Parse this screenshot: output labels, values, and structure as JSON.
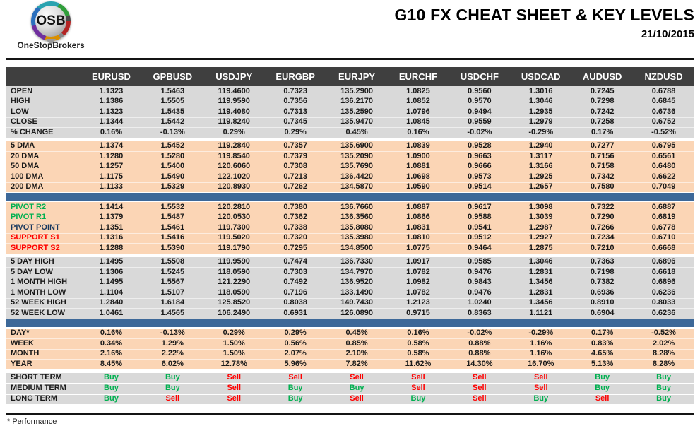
{
  "logo": {
    "abbr": "OSB",
    "name": "OneStopBrokers"
  },
  "header": {
    "title": "G10 FX CHEAT SHEET & KEY LEVELS",
    "date": "21/10/2015"
  },
  "footnote": "* Performance",
  "palette": {
    "header_bg": "#3F3F3F",
    "gray_band": "#D9D9D9",
    "peach_band": "#FBD5B5",
    "blue_bar": "#3D6898",
    "buy": "#00B050",
    "sell": "#FF0000",
    "pivot_resistance_label": "#00B050",
    "pivot_point_label": "#17375E",
    "support_label": "#FF0000"
  },
  "table": {
    "columns": [
      "EURUSD",
      "GPBUSD",
      "USDJPY",
      "EURGBP",
      "EURJPY",
      "EURCHF",
      "USDCHF",
      "USDCAD",
      "AUDUSD",
      "NZDUSD"
    ],
    "sections": [
      {
        "id": "ohlc",
        "bg": "gray",
        "after": "gap",
        "rows": [
          {
            "label": "OPEN",
            "values": [
              "1.1323",
              "1.5463",
              "119.4600",
              "0.7323",
              "135.2900",
              "1.0825",
              "0.9560",
              "1.3016",
              "0.7245",
              "0.6788"
            ]
          },
          {
            "label": "HIGH",
            "values": [
              "1.1386",
              "1.5505",
              "119.9590",
              "0.7356",
              "136.2170",
              "1.0852",
              "0.9570",
              "1.3046",
              "0.7298",
              "0.6845"
            ]
          },
          {
            "label": "LOW",
            "values": [
              "1.1323",
              "1.5435",
              "119.4080",
              "0.7313",
              "135.2590",
              "1.0796",
              "0.9494",
              "1.2935",
              "0.7242",
              "0.6736"
            ]
          },
          {
            "label": "CLOSE",
            "values": [
              "1.1344",
              "1.5442",
              "119.8240",
              "0.7345",
              "135.9470",
              "1.0845",
              "0.9559",
              "1.2979",
              "0.7258",
              "0.6752"
            ]
          },
          {
            "label": "% CHANGE",
            "values": [
              "0.16%",
              "-0.13%",
              "0.29%",
              "0.29%",
              "0.45%",
              "0.16%",
              "-0.02%",
              "-0.29%",
              "0.17%",
              "-0.52%"
            ]
          }
        ]
      },
      {
        "id": "moving-averages",
        "bg": "peach",
        "after": "bluebar",
        "rows": [
          {
            "label": "5 DMA",
            "values": [
              "1.1374",
              "1.5452",
              "119.2840",
              "0.7357",
              "135.6900",
              "1.0839",
              "0.9528",
              "1.2940",
              "0.7277",
              "0.6795"
            ]
          },
          {
            "label": "20 DMA",
            "values": [
              "1.1280",
              "1.5280",
              "119.8540",
              "0.7379",
              "135.2090",
              "1.0900",
              "0.9663",
              "1.3117",
              "0.7156",
              "0.6561"
            ]
          },
          {
            "label": "50 DMA",
            "values": [
              "1.1257",
              "1.5400",
              "120.6060",
              "0.7308",
              "135.7690",
              "1.0881",
              "0.9666",
              "1.3166",
              "0.7158",
              "0.6480"
            ]
          },
          {
            "label": "100 DMA",
            "values": [
              "1.1175",
              "1.5490",
              "122.1020",
              "0.7213",
              "136.4420",
              "1.0698",
              "0.9573",
              "1.2925",
              "0.7342",
              "0.6622"
            ]
          },
          {
            "label": "200 DMA",
            "values": [
              "1.1133",
              "1.5329",
              "120.8930",
              "0.7262",
              "134.5870",
              "1.0590",
              "0.9514",
              "1.2657",
              "0.7580",
              "0.7049"
            ]
          }
        ]
      },
      {
        "id": "pivots",
        "bg": "peach",
        "after": "gap",
        "rows": [
          {
            "label": "PIVOT R2",
            "label_color": "#00B050",
            "values": [
              "1.1414",
              "1.5532",
              "120.2810",
              "0.7380",
              "136.7660",
              "1.0887",
              "0.9617",
              "1.3098",
              "0.7322",
              "0.6887"
            ]
          },
          {
            "label": "PIVOT R1",
            "label_color": "#00B050",
            "values": [
              "1.1379",
              "1.5487",
              "120.0530",
              "0.7362",
              "136.3560",
              "1.0866",
              "0.9588",
              "1.3039",
              "0.7290",
              "0.6819"
            ]
          },
          {
            "label": "PIVOT POINT",
            "label_color": "#17375E",
            "values": [
              "1.1351",
              "1.5461",
              "119.7300",
              "0.7338",
              "135.8080",
              "1.0831",
              "0.9541",
              "1.2987",
              "0.7266",
              "0.6778"
            ]
          },
          {
            "label": "SUPPORT S1",
            "label_color": "#FF0000",
            "values": [
              "1.1316",
              "1.5416",
              "119.5020",
              "0.7320",
              "135.3980",
              "1.0810",
              "0.9512",
              "1.2927",
              "0.7234",
              "0.6710"
            ]
          },
          {
            "label": "SUPPORT S2",
            "label_color": "#FF0000",
            "values": [
              "1.1288",
              "1.5390",
              "119.1790",
              "0.7295",
              "134.8500",
              "1.0775",
              "0.9464",
              "1.2875",
              "0.7210",
              "0.6668"
            ]
          }
        ]
      },
      {
        "id": "ranges",
        "bg": "gray",
        "after": "bluebar",
        "rows": [
          {
            "label": "5 DAY HIGH",
            "values": [
              "1.1495",
              "1.5508",
              "119.9590",
              "0.7474",
              "136.7330",
              "1.0917",
              "0.9585",
              "1.3046",
              "0.7363",
              "0.6896"
            ]
          },
          {
            "label": "5 DAY LOW",
            "values": [
              "1.1306",
              "1.5245",
              "118.0590",
              "0.7303",
              "134.7970",
              "1.0782",
              "0.9476",
              "1.2831",
              "0.7198",
              "0.6618"
            ]
          },
          {
            "label": "1 MONTH HIGH",
            "values": [
              "1.1495",
              "1.5567",
              "121.2290",
              "0.7492",
              "136.9520",
              "1.0982",
              "0.9843",
              "1.3456",
              "0.7382",
              "0.6896"
            ]
          },
          {
            "label": "1 MONTH LOW",
            "values": [
              "1.1104",
              "1.5107",
              "118.0590",
              "0.7196",
              "133.1490",
              "1.0782",
              "0.9476",
              "1.2831",
              "0.6936",
              "0.6236"
            ]
          },
          {
            "label": "52 WEEK HIGH",
            "values": [
              "1.2840",
              "1.6184",
              "125.8520",
              "0.8038",
              "149.7430",
              "1.2123",
              "1.0240",
              "1.3456",
              "0.8910",
              "0.8033"
            ]
          },
          {
            "label": "52 WEEK LOW",
            "values": [
              "1.0461",
              "1.4565",
              "106.2490",
              "0.6931",
              "126.0890",
              "0.9715",
              "0.8363",
              "1.1121",
              "0.6904",
              "0.6236"
            ]
          }
        ]
      },
      {
        "id": "performance",
        "bg": "peach",
        "after": "gap",
        "rows": [
          {
            "label": "DAY*",
            "values": [
              "0.16%",
              "-0.13%",
              "0.29%",
              "0.29%",
              "0.45%",
              "0.16%",
              "-0.02%",
              "-0.29%",
              "0.17%",
              "-0.52%"
            ]
          },
          {
            "label": "WEEK",
            "values": [
              "0.34%",
              "1.29%",
              "1.50%",
              "0.56%",
              "0.85%",
              "0.58%",
              "0.88%",
              "1.16%",
              "0.83%",
              "2.02%"
            ]
          },
          {
            "label": "MONTH",
            "values": [
              "2.16%",
              "2.22%",
              "1.50%",
              "2.07%",
              "2.10%",
              "0.58%",
              "0.88%",
              "1.16%",
              "4.65%",
              "8.28%"
            ]
          },
          {
            "label": "YEAR",
            "values": [
              "8.45%",
              "6.02%",
              "12.78%",
              "5.96%",
              "7.82%",
              "11.62%",
              "14.30%",
              "16.70%",
              "5.13%",
              "8.28%"
            ]
          }
        ]
      },
      {
        "id": "signals",
        "bg": "gray",
        "signal": true,
        "after": "none",
        "rows": [
          {
            "label": "SHORT TERM",
            "values": [
              "Buy",
              "Buy",
              "Sell",
              "Sell",
              "Sell",
              "Sell",
              "Sell",
              "Sell",
              "Buy",
              "Buy"
            ]
          },
          {
            "label": "MEDIUM TERM",
            "values": [
              "Buy",
              "Buy",
              "Sell",
              "Buy",
              "Buy",
              "Sell",
              "Sell",
              "Sell",
              "Buy",
              "Buy"
            ]
          },
          {
            "label": "LONG TERM",
            "values": [
              "Buy",
              "Sell",
              "Sell",
              "Buy",
              "Sell",
              "Buy",
              "Sell",
              "Buy",
              "Sell",
              "Buy"
            ]
          }
        ]
      }
    ]
  }
}
